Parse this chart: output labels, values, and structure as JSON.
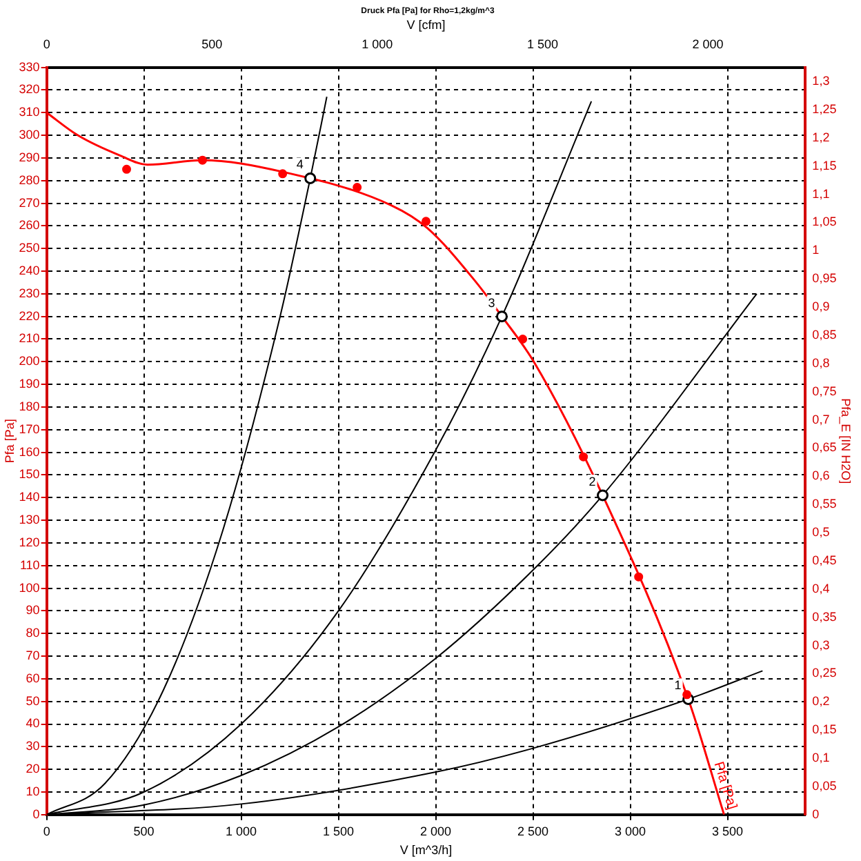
{
  "chart_data": {
    "type": "line",
    "title": "Druck Pfa [Pa] for Rho=1,2kg/m^3",
    "xlabel": "V [m^3/h]",
    "x2label": "V [cfm]",
    "ylabel": "Pfa [Pa]",
    "y2label": "Pfa_E [IN H2O]",
    "xlim": [
      0,
      3900
    ],
    "xticks": [
      0,
      500,
      {
        "value": 1000,
        "label": "1 000"
      },
      {
        "value": 1500,
        "label": "1 500"
      },
      {
        "value": 2000,
        "label": "2 000"
      },
      {
        "value": 2500,
        "label": "2 500"
      },
      {
        "value": 3000,
        "label": "3 000"
      },
      {
        "value": 3500,
        "label": "3 500"
      }
    ],
    "x2lim": [
      0,
      2295
    ],
    "x2ticks": [
      0,
      500,
      {
        "value": 1000,
        "label": "1 000"
      },
      {
        "value": 1500,
        "label": "1 500"
      },
      {
        "value": 2000,
        "label": "2 000"
      }
    ],
    "ylim": [
      0,
      330
    ],
    "yticks": [
      0,
      10,
      20,
      30,
      40,
      50,
      60,
      70,
      80,
      90,
      100,
      110,
      120,
      130,
      140,
      150,
      160,
      170,
      180,
      190,
      200,
      210,
      220,
      230,
      240,
      250,
      260,
      270,
      280,
      290,
      300,
      310,
      320,
      330
    ],
    "y2lim": [
      0,
      1.325
    ],
    "y2ticks": [
      0,
      {
        "value": 0.05,
        "label": "0,05"
      },
      {
        "value": 0.1,
        "label": "0,1"
      },
      {
        "value": 0.15,
        "label": "0,15"
      },
      {
        "value": 0.2,
        "label": "0,2"
      },
      {
        "value": 0.25,
        "label": "0,25"
      },
      {
        "value": 0.3,
        "label": "0,3"
      },
      {
        "value": 0.35,
        "label": "0,35"
      },
      {
        "value": 0.4,
        "label": "0,4"
      },
      {
        "value": 0.45,
        "label": "0,45"
      },
      {
        "value": 0.5,
        "label": "0,5"
      },
      {
        "value": 0.55,
        "label": "0,55"
      },
      {
        "value": 0.6,
        "label": "0,6"
      },
      {
        "value": 0.65,
        "label": "0,65"
      },
      {
        "value": 0.7,
        "label": "0,7"
      },
      {
        "value": 0.75,
        "label": "0,75"
      },
      {
        "value": 0.8,
        "label": "0,8"
      },
      {
        "value": 0.85,
        "label": "0,85"
      },
      {
        "value": 0.9,
        "label": "0,9"
      },
      {
        "value": 0.95,
        "label": "0,95"
      },
      1,
      {
        "value": 1.05,
        "label": "1,05"
      },
      {
        "value": 1.1,
        "label": "1,1"
      },
      {
        "value": 1.15,
        "label": "1,15"
      },
      {
        "value": 1.2,
        "label": "1,2"
      },
      {
        "value": 1.25,
        "label": "1,25"
      },
      {
        "value": 1.3,
        "label": "1,3"
      }
    ],
    "grid": true,
    "legend": false,
    "series": [
      {
        "name": "Pfa [Pa]",
        "color": "#ff0000",
        "marker": "none",
        "x": [
          0,
          160,
          379,
          518,
          801,
          1206,
          1773,
          1957,
          2199,
          2340,
          2504,
          2858,
          3298,
          3482
        ],
        "values": [
          310,
          300,
          291,
          287,
          289,
          284,
          269,
          259,
          236,
          220,
          200,
          141,
          51,
          0
        ]
      },
      {
        "type": "scatter",
        "color": "#ff0000",
        "marker": "circle",
        "x": [
          411,
          801,
          1213,
          1596,
          1950,
          2447,
          2759,
          3043,
          3291
        ],
        "values": [
          285,
          289,
          283,
          277,
          262,
          210,
          158,
          105,
          53
        ]
      },
      {
        "color": "#000000",
        "marker": "none",
        "x": [
          0,
          300,
          600,
          900,
          1200,
          1355,
          1440
        ],
        "values": [
          0,
          13.8,
          55,
          124,
          220,
          281,
          317
        ]
      },
      {
        "color": "#000000",
        "marker": "none",
        "x": [
          0,
          500,
          1000,
          1500,
          2000,
          2340,
          2800
        ],
        "values": [
          0,
          10,
          40,
          90,
          161,
          220,
          315
        ]
      },
      {
        "color": "#000000",
        "marker": "none",
        "x": [
          0,
          500,
          1000,
          1500,
          2000,
          2500,
          2858,
          3650
        ],
        "values": [
          0,
          4.3,
          17.3,
          38.8,
          69,
          108,
          141,
          230
        ]
      },
      {
        "color": "#000000",
        "marker": "none",
        "x": [
          0,
          1000,
          2000,
          2500,
          3298,
          3680
        ],
        "values": [
          0,
          4.7,
          18.8,
          29.3,
          51,
          63.5
        ]
      },
      {
        "type": "scatter",
        "color": "#000000",
        "marker": "circle",
        "x": [
          3298,
          2858,
          2340,
          1355
        ],
        "values": [
          51,
          141,
          220,
          281
        ]
      }
    ],
    "annotations": [
      {
        "text": "1",
        "x": 3298,
        "y": 51
      },
      {
        "text": "2",
        "x": 2858,
        "y": 141
      },
      {
        "text": "3",
        "x": 2340,
        "y": 220
      },
      {
        "text": "4",
        "x": 1355,
        "y": 281
      }
    ]
  }
}
